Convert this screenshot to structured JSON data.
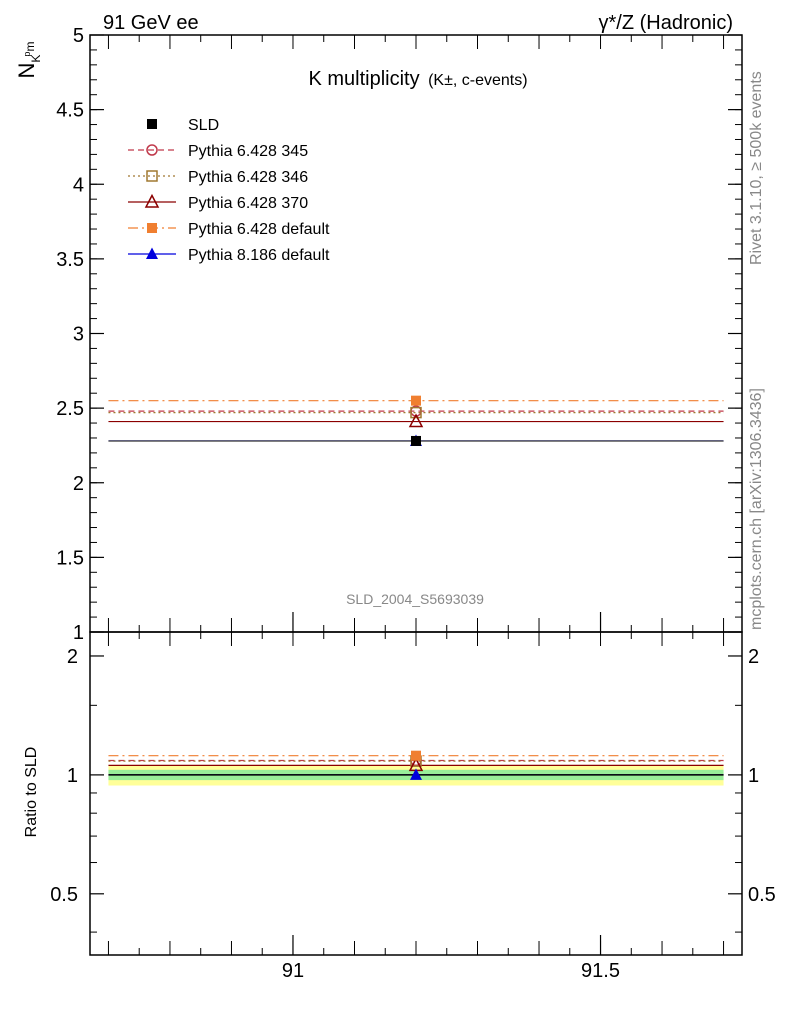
{
  "header": {
    "left": "91 GeV ee",
    "right": "γ*/Z (Hadronic)"
  },
  "side_labels": {
    "rivet": "Rivet 3.1.10, ≥ 500k events",
    "mcplots": "mcplots.cern.ch [arXiv:1306.3436]"
  },
  "chart_data": {
    "type": "scatter",
    "title": "K multiplicity",
    "title_suffix": "(K±, c-events)",
    "ylabel_main": "N_{K^{p}m}",
    "ylabel_ratio": "Ratio to SLD",
    "watermark": "SLD_2004_S5693039",
    "xlim": [
      90.67,
      91.73
    ],
    "ylim_main": [
      1.0,
      5.0
    ],
    "ylim_ratio": [
      0.35,
      2.3
    ],
    "x_ticks": [
      91,
      91.5
    ],
    "x_tick_labels": [
      "91",
      "91.5"
    ],
    "y_ticks_main": [
      1,
      1.5,
      2,
      2.5,
      3,
      3.5,
      4,
      4.5,
      5
    ],
    "y_tick_labels_main": [
      "1",
      "1.5",
      "2",
      "2.5",
      "3",
      "3.5",
      "4",
      "4.5",
      "5"
    ],
    "y_ticks_ratio": [
      0.5,
      1,
      2
    ],
    "y_tick_labels_ratio": [
      "0.5",
      "1",
      "2"
    ],
    "bin": [
      90.7,
      91.7
    ],
    "point_x": 91.2,
    "data": {
      "name": "SLD",
      "value": 2.28,
      "error": 0.005,
      "color": "#000000"
    },
    "ratio_bands": {
      "inner": [
        0.97,
        1.03
      ],
      "outer": [
        0.94,
        1.06
      ],
      "inner_color": "#99ee99",
      "outer_color": "#ffff99"
    },
    "series": [
      {
        "name": "Pythia 6.428 345",
        "value": 2.48,
        "color": "#c0394b",
        "style": "dashed",
        "marker": "open-circle"
      },
      {
        "name": "Pythia 6.428 346",
        "value": 2.47,
        "color": "#a07830",
        "style": "dotted",
        "marker": "open-square"
      },
      {
        "name": "Pythia 6.428 370",
        "value": 2.41,
        "color": "#8b0000",
        "style": "solid",
        "marker": "open-triangle"
      },
      {
        "name": "Pythia 6.428 default",
        "value": 2.55,
        "color": "#f07f30",
        "style": "dashdot",
        "marker": "filled-square"
      },
      {
        "name": "Pythia 8.186 default",
        "value": 2.28,
        "color": "#0000dd",
        "style": "solid",
        "marker": "filled-triangle"
      }
    ],
    "legend_position": "top-left"
  }
}
